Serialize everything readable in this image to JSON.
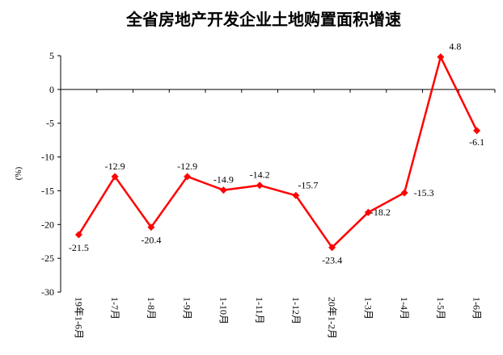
{
  "chart_data": {
    "type": "line",
    "title": "全省房地产开发企业土地购置面积增速",
    "ylabel": "(%)",
    "xlabel": "",
    "ylim": [
      -30,
      5
    ],
    "yticks": [
      5,
      0,
      -5,
      -10,
      -15,
      -20,
      -25,
      -30
    ],
    "grid": false,
    "legend": "none",
    "categories": [
      "19年1-6月",
      "1-7月",
      "1-8月",
      "1-9月",
      "1-10月",
      "1-11月",
      "1-12月",
      "20年1-2月",
      "1-3月",
      "1-4月",
      "1-5月",
      "1-6月"
    ],
    "series": [
      {
        "values": [
          -21.5,
          -12.9,
          -20.4,
          -12.9,
          -14.9,
          -14.2,
          -15.7,
          -23.4,
          -18.2,
          -15.3,
          4.8,
          -6.1
        ],
        "labels": [
          "-21.5",
          "-12.9",
          "-20.4",
          "-12.9",
          "-14.9",
          "-14.2",
          "-15.7",
          "-23.4",
          "-18.2",
          "-15.3",
          "4.8",
          "-6.1"
        ],
        "color": "#ff0000"
      }
    ]
  }
}
